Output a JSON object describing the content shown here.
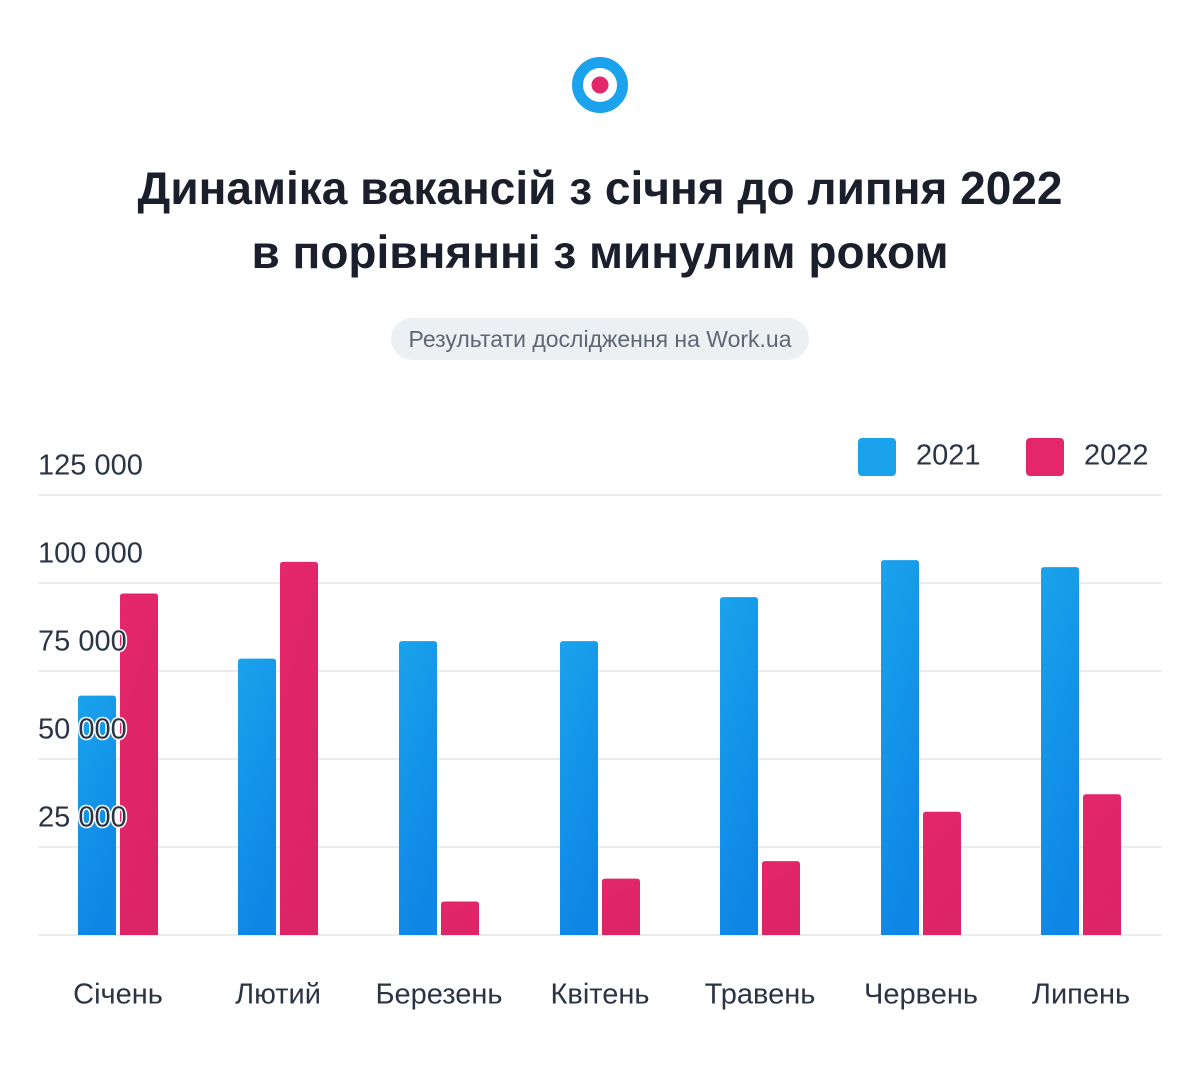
{
  "header": {
    "title_line1": "Динаміка вакансій з січня до липня 2022",
    "title_line2": "в порівнянні з минулим роком",
    "subtitle": "Результати дослідження на Work.ua"
  },
  "colors": {
    "series_2021": "#1aa3ec",
    "series_2022": "#e4266a",
    "logo_ring": "#1aa3ec",
    "logo_dot": "#e4266a",
    "grid": "#e3e6ea"
  },
  "chart_data": {
    "type": "bar",
    "categories": [
      "Січень",
      "Лютий",
      "Березень",
      "Квітень",
      "Травень",
      "Червень",
      "Липень"
    ],
    "series": [
      {
        "name": "2021",
        "values": [
          68000,
          78500,
          83500,
          83500,
          96000,
          106500,
          104500
        ]
      },
      {
        "name": "2022",
        "values": [
          97000,
          106000,
          9500,
          16000,
          21000,
          35000,
          40000
        ]
      }
    ],
    "y_ticks": [
      {
        "value": 25000,
        "label": "25 000"
      },
      {
        "value": 50000,
        "label": "50 000"
      },
      {
        "value": 75000,
        "label": "75 000"
      },
      {
        "value": 100000,
        "label": "100 000"
      },
      {
        "value": 125000,
        "label": "125 000"
      }
    ],
    "ylim": [
      0,
      125000
    ],
    "grid": true,
    "legend_position": "top-right"
  }
}
